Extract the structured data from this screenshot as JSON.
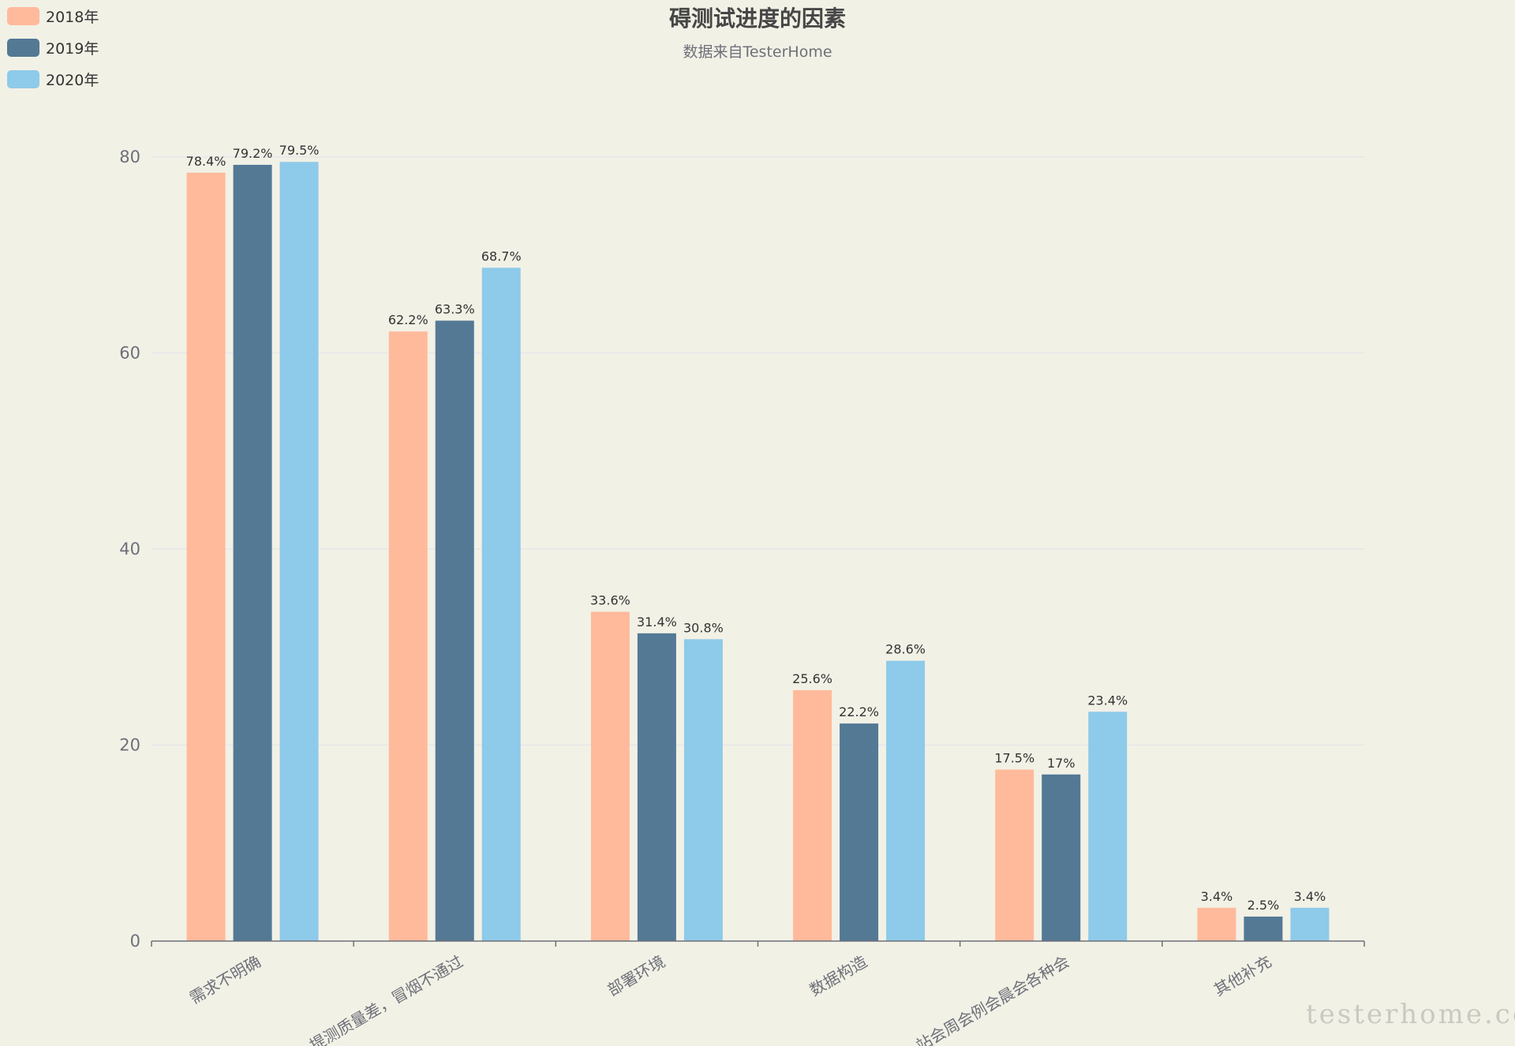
{
  "chart_data": {
    "type": "bar",
    "title": "碍测试进度的因素",
    "subtitle": "数据来自TesterHome",
    "categories": [
      "需求不明确",
      "提测质量差，冒烟不通过",
      "部署环境",
      "数据构造",
      "站会周会例会晨会各种会",
      "其他补充"
    ],
    "series": [
      {
        "name": "2018年",
        "color": "#ffba9b",
        "values": [
          78.4,
          62.2,
          33.6,
          25.6,
          17.5,
          3.4
        ],
        "labels": [
          "78.4%",
          "62.2%",
          "33.6%",
          "25.6%",
          "17.5%",
          "3.4%"
        ]
      },
      {
        "name": "2019年",
        "color": "#537995",
        "values": [
          79.2,
          63.3,
          31.4,
          22.2,
          17,
          2.5
        ],
        "labels": [
          "79.2%",
          "63.3%",
          "31.4%",
          "22.2%",
          "17%",
          "2.5%"
        ]
      },
      {
        "name": "2020年",
        "color": "#8ecae9",
        "values": [
          79.5,
          68.7,
          30.8,
          28.6,
          23.4,
          3.4
        ],
        "labels": [
          "79.5%",
          "68.7%",
          "30.8%",
          "28.6%",
          "23.4%",
          "3.4%"
        ]
      }
    ],
    "ylim": [
      0,
      80
    ],
    "yticks": [
      0,
      20,
      40,
      60,
      80
    ],
    "grid": true,
    "legend_position": "top-left"
  },
  "watermark": "testerhome.com"
}
